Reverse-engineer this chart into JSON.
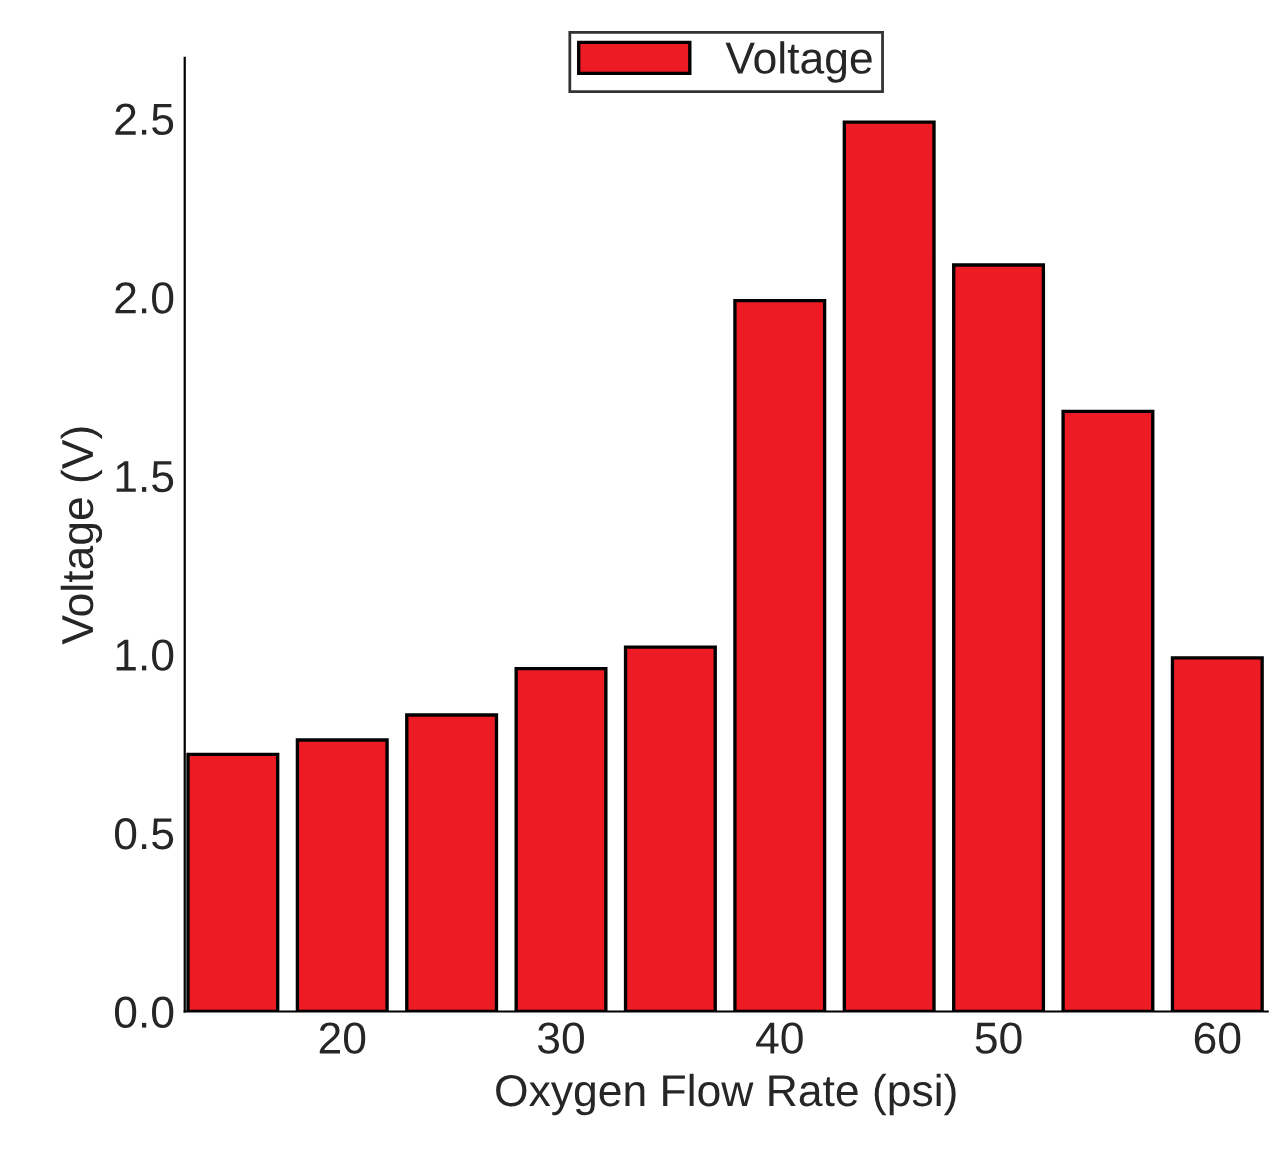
{
  "chart_data": {
    "type": "bar",
    "xlabel": "Oxygen Flow Rate (psi)",
    "ylabel": "Voltage (V)",
    "x": [
      15,
      20,
      25,
      30,
      35,
      40,
      45,
      50,
      55,
      60
    ],
    "series": [
      {
        "name": "Voltage",
        "color": "#ed1c24",
        "values": [
          0.72,
          0.76,
          0.83,
          0.96,
          1.02,
          1.99,
          2.49,
          2.09,
          1.68,
          0.99
        ]
      }
    ],
    "xlim": [
      12.8,
      62.3
    ],
    "xticks": [
      20,
      30,
      40,
      50,
      60
    ],
    "ylim": [
      0,
      2.67
    ],
    "yticks": [
      {
        "value": 0,
        "label": "0.0"
      },
      {
        "value": 0.5,
        "label": "0.5"
      },
      {
        "value": 1.0,
        "label": "1.0"
      },
      {
        "value": 1.5,
        "label": "1.5"
      },
      {
        "value": 2.0,
        "label": "2.0"
      },
      {
        "value": 2.5,
        "label": "2.5"
      }
    ],
    "legend": "top",
    "grid": false
  }
}
